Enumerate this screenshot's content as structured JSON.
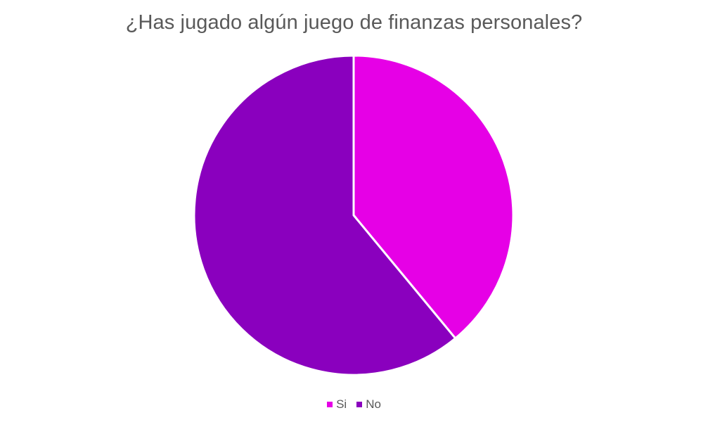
{
  "chart_data": {
    "type": "pie",
    "title": "¿Has jugado algún juego de finanzas personales?",
    "categories": [
      "Si",
      "No"
    ],
    "values": [
      39,
      61
    ],
    "colors": [
      "#E600E6",
      "#8A00BE"
    ],
    "start_angle_deg": 0,
    "direction": "clockwise",
    "legend_position": "bottom"
  }
}
